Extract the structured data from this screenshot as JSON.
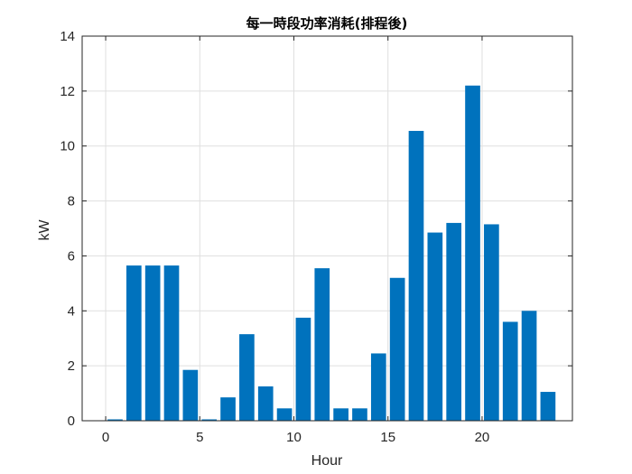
{
  "chart_data": {
    "type": "bar",
    "title": "每一時段功率消耗(排程後)",
    "xlabel": "Hour",
    "ylabel": "kW",
    "x": [
      0,
      1,
      2,
      3,
      4,
      5,
      6,
      7,
      8,
      9,
      10,
      11,
      12,
      13,
      14,
      15,
      16,
      17,
      18,
      19,
      20,
      21,
      22,
      23
    ],
    "values": [
      0.05,
      5.65,
      5.65,
      5.65,
      1.85,
      0.05,
      0.85,
      3.15,
      1.25,
      0.45,
      3.75,
      5.55,
      0.45,
      0.45,
      2.45,
      5.2,
      10.55,
      6.85,
      7.2,
      12.2,
      7.15,
      3.6,
      4.0,
      1.05
    ],
    "xlim": [
      -1.25,
      24.8
    ],
    "ylim": [
      0,
      14
    ],
    "xticks": [
      "0",
      "5",
      "10",
      "15",
      "20"
    ],
    "yticks": [
      "0",
      "2",
      "4",
      "6",
      "8",
      "10",
      "12",
      "14"
    ],
    "grid": true,
    "bar_color": "#0072bd"
  }
}
